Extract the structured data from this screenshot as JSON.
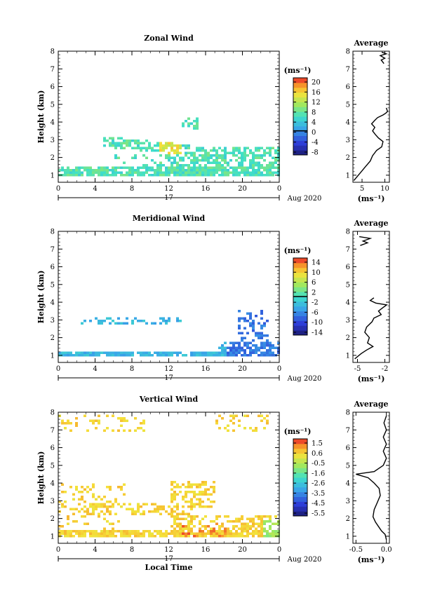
{
  "chart_data": [
    {
      "type": "heatmap",
      "title": "Zonal Wind",
      "ylabel": "Height (km)",
      "ylim": [
        0.6,
        8
      ],
      "xlim": [
        0,
        24
      ],
      "x_ticks": [
        "0",
        "4",
        "8",
        "12",
        "16",
        "20",
        "0"
      ],
      "y_ticks": [
        "1",
        "2",
        "3",
        "4",
        "5",
        "6",
        "7",
        "8"
      ],
      "day_label": "17",
      "date_label": "Aug 2020",
      "colorbar": {
        "unit": "(ms⁻¹)",
        "ticks": [
          "20",
          "16",
          "12",
          "8",
          "4",
          "0",
          "-4",
          "-8"
        ],
        "min": -10,
        "max": 22,
        "marker": 0
      },
      "profile": {
        "title": "Average",
        "xlabel": "(ms⁻¹)",
        "x_ticks": [
          "5",
          "10"
        ],
        "xlim": [
          3,
          11
        ],
        "points": [
          [
            3.2,
            0.7
          ],
          [
            4.5,
            1.1
          ],
          [
            5.8,
            1.5
          ],
          [
            6.8,
            1.8
          ],
          [
            7.3,
            2.1
          ],
          [
            8.2,
            2.4
          ],
          [
            9.3,
            2.6
          ],
          [
            9.6,
            2.9
          ],
          [
            8.6,
            3.1
          ],
          [
            7.9,
            3.3
          ],
          [
            7.3,
            3.5
          ],
          [
            7.8,
            3.7
          ],
          [
            7.1,
            3.9
          ],
          [
            7.8,
            4.1
          ],
          [
            8.4,
            4.25
          ],
          [
            9.6,
            4.4
          ],
          [
            10.2,
            4.5
          ],
          [
            10.6,
            4.6
          ],
          [
            10.3,
            4.8
          ]
        ],
        "top_points": [
          [
            9.8,
            7.3
          ],
          [
            9.2,
            7.5
          ],
          [
            10.0,
            7.6
          ],
          [
            9.0,
            7.75
          ],
          [
            10.3,
            7.85
          ],
          [
            9.3,
            7.95
          ]
        ]
      }
    },
    {
      "type": "heatmap",
      "title": "Meridional Wind",
      "ylabel": "Height (km)",
      "ylim": [
        0.6,
        8
      ],
      "xlim": [
        0,
        24
      ],
      "x_ticks": [
        "0",
        "4",
        "8",
        "12",
        "16",
        "20",
        "0"
      ],
      "y_ticks": [
        "1",
        "2",
        "3",
        "4",
        "5",
        "6",
        "7",
        "8"
      ],
      "day_label": "17",
      "date_label": "Aug 2020",
      "colorbar": {
        "unit": "(ms⁻¹)",
        "ticks": [
          "14",
          "10",
          "6",
          "2",
          "-2",
          "-6",
          "-10",
          "-14"
        ],
        "min": -16,
        "max": 16,
        "marker": 0
      },
      "profile": {
        "title": "Average",
        "xlabel": "(ms⁻¹)",
        "x_ticks": [
          "-5",
          "-2"
        ],
        "xlim": [
          -5.5,
          -1.5
        ],
        "points": [
          [
            -5.3,
            0.8
          ],
          [
            -4.6,
            1.1
          ],
          [
            -4.0,
            1.3
          ],
          [
            -3.3,
            1.5
          ],
          [
            -3.9,
            1.7
          ],
          [
            -3.7,
            2.0
          ],
          [
            -4.2,
            2.3
          ],
          [
            -4.0,
            2.6
          ],
          [
            -3.4,
            2.9
          ],
          [
            -3.2,
            3.1
          ],
          [
            -2.4,
            3.3
          ],
          [
            -2.7,
            3.5
          ],
          [
            -2.2,
            3.7
          ],
          [
            -1.8,
            3.85
          ],
          [
            -3.0,
            3.95
          ],
          [
            -3.6,
            4.1
          ],
          [
            -3.2,
            4.25
          ]
        ],
        "top_points": [
          [
            -4.7,
            7.2
          ],
          [
            -3.9,
            7.35
          ],
          [
            -4.4,
            7.45
          ],
          [
            -3.6,
            7.6
          ],
          [
            -4.8,
            7.7
          ]
        ]
      }
    },
    {
      "type": "heatmap",
      "title": "Vertical Wind",
      "xlabel": "Local Time",
      "ylabel": "Height (km)",
      "ylim": [
        0.6,
        8
      ],
      "xlim": [
        0,
        24
      ],
      "x_ticks": [
        "0",
        "4",
        "8",
        "12",
        "16",
        "20",
        "0"
      ],
      "y_ticks": [
        "1",
        "2",
        "3",
        "4",
        "5",
        "6",
        "7",
        "8"
      ],
      "day_label": "17",
      "date_label": "Aug 2020",
      "colorbar": {
        "unit": "(ms⁻¹)",
        "ticks": [
          "1.5",
          "0.6",
          "-0.5",
          "-1.6",
          "-2.6",
          "-3.5",
          "-4.5",
          "-5.5"
        ],
        "min": -6,
        "max": 2,
        "marker": null
      },
      "profile": {
        "title": "Average",
        "xlabel": "(ms⁻¹)",
        "x_ticks": [
          "-0.5",
          "0.0"
        ],
        "xlim": [
          -0.55,
          0.05
        ],
        "points": [
          [
            0.0,
            0.8
          ],
          [
            -0.02,
            1.1
          ],
          [
            -0.08,
            1.3
          ],
          [
            -0.12,
            1.5
          ],
          [
            -0.18,
            1.8
          ],
          [
            -0.22,
            2.1
          ],
          [
            -0.2,
            2.5
          ],
          [
            -0.15,
            2.9
          ],
          [
            -0.1,
            3.3
          ],
          [
            -0.12,
            3.7
          ],
          [
            -0.2,
            4.0
          ],
          [
            -0.3,
            4.3
          ],
          [
            -0.5,
            4.5
          ],
          [
            -0.2,
            4.65
          ],
          [
            -0.05,
            5.0
          ],
          [
            0.0,
            5.4
          ],
          [
            -0.05,
            5.8
          ],
          [
            0.0,
            6.2
          ],
          [
            -0.05,
            6.6
          ],
          [
            0.0,
            7.0
          ],
          [
            -0.04,
            7.4
          ],
          [
            0.0,
            7.8
          ]
        ]
      }
    }
  ]
}
